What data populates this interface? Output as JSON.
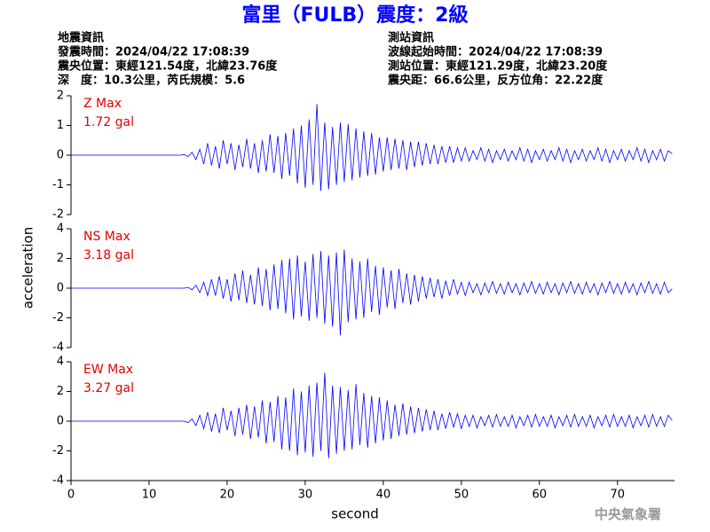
{
  "header": {
    "title": "富里（FULB）震度：2級",
    "left_info": [
      "地震資訊",
      "發震時間：2024/04/22 17:08:39",
      "震央位置：東經121.54度，北緯23.76度",
      "深　度：10.3公里，芮氏規模：5.6"
    ],
    "right_info": [
      "測站資訊",
      "波線起始時間：2024/04/22 17:08:39",
      "測站位置：東經121.29度，北緯23.20度",
      "震央距：66.6公里，反方位角：22.22度"
    ]
  },
  "y_label": "acceleration",
  "watermark": "中央氣象署",
  "chart_data": [
    {
      "type": "line",
      "color": "#0000ff",
      "annotations": [
        "Z Max",
        "1.72 gal"
      ],
      "xlim": [
        0,
        77.3
      ],
      "ylim": [
        -2,
        2
      ],
      "yticks": [
        -2,
        -1,
        0,
        1,
        2
      ],
      "x": [
        0,
        14,
        14.5,
        15,
        15.5,
        16,
        16.5,
        17,
        17.5,
        18,
        18.5,
        19,
        19.5,
        20,
        20.5,
        21,
        21.5,
        22,
        22.5,
        23,
        23.5,
        24,
        24.5,
        25,
        25.5,
        26,
        26.5,
        27,
        27.5,
        28,
        28.5,
        29,
        29.5,
        30,
        30.5,
        31,
        31.5,
        32,
        32.5,
        33,
        33.5,
        34,
        34.5,
        35,
        35.5,
        36,
        36.5,
        37,
        37.5,
        38,
        38.5,
        39,
        39.5,
        40,
        40.5,
        41,
        41.5,
        42,
        42.5,
        43,
        43.5,
        44,
        44.5,
        45,
        45.5,
        46,
        46.5,
        47,
        47.5,
        48,
        48.5,
        49,
        49.5,
        50,
        50.5,
        51,
        51.5,
        52,
        52.5,
        53,
        53.5,
        54,
        54.5,
        55,
        55.5,
        56,
        56.5,
        57,
        57.5,
        58,
        58.5,
        59,
        59.5,
        60,
        60.5,
        61,
        61.5,
        62,
        62.5,
        63,
        63.5,
        64,
        64.5,
        65,
        65.5,
        66,
        66.5,
        67,
        67.5,
        68,
        68.5,
        69,
        69.5,
        70,
        70.5,
        71,
        71.5,
        72,
        72.5,
        73,
        73.5,
        74,
        74.5,
        75,
        75.5,
        76,
        76.5,
        77
      ],
      "values": [
        0,
        0,
        0.02,
        -0.05,
        0.1,
        -0.15,
        0.2,
        -0.3,
        0.4,
        -0.35,
        0.3,
        -0.45,
        0.5,
        -0.3,
        0.4,
        -0.5,
        0.35,
        -0.4,
        0.55,
        -0.45,
        0.4,
        -0.6,
        0.5,
        -0.55,
        0.7,
        -0.6,
        0.65,
        -0.8,
        0.75,
        -0.7,
        0.9,
        -0.95,
        1.0,
        -1.1,
        1.2,
        -1.0,
        1.72,
        -1.2,
        1.1,
        -1.15,
        0.95,
        -1.0,
        1.1,
        -0.9,
        1.05,
        -0.85,
        0.9,
        -0.75,
        0.8,
        -0.7,
        0.75,
        -0.65,
        0.6,
        -0.55,
        0.6,
        -0.5,
        0.55,
        -0.45,
        0.5,
        -0.5,
        0.45,
        -0.4,
        0.45,
        -0.35,
        0.4,
        -0.3,
        0.35,
        -0.3,
        0.3,
        -0.25,
        0.3,
        -0.25,
        0.25,
        -0.2,
        0.25,
        -0.2,
        0.15,
        -0.15,
        0.25,
        -0.2,
        0.2,
        -0.25,
        0.15,
        -0.15,
        0.2,
        -0.2,
        0.15,
        -0.15,
        0.25,
        -0.2,
        0.2,
        -0.25,
        0.15,
        -0.15,
        0.2,
        -0.2,
        0.15,
        -0.15,
        0.25,
        -0.2,
        0.2,
        -0.25,
        0.15,
        -0.15,
        0.2,
        -0.2,
        0.15,
        -0.15,
        0.25,
        -0.2,
        0.2,
        -0.25,
        0.15,
        -0.15,
        0.2,
        -0.2,
        0.15,
        -0.15,
        0.25,
        -0.2,
        0.2,
        -0.25,
        0.15,
        -0.15,
        0.2,
        -0.2,
        0.15,
        0.05
      ]
    },
    {
      "type": "line",
      "color": "#0000ff",
      "annotations": [
        "NS Max",
        "3.18 gal"
      ],
      "xlim": [
        0,
        77.3
      ],
      "ylim": [
        -4,
        4
      ],
      "yticks": [
        -4,
        -2,
        0,
        2,
        4
      ],
      "x": [
        0,
        14,
        14.5,
        15,
        15.5,
        16,
        16.5,
        17,
        17.5,
        18,
        18.5,
        19,
        19.5,
        20,
        20.5,
        21,
        21.5,
        22,
        22.5,
        23,
        23.5,
        24,
        24.5,
        25,
        25.5,
        26,
        26.5,
        27,
        27.5,
        28,
        28.5,
        29,
        29.5,
        30,
        30.5,
        31,
        31.5,
        32,
        32.5,
        33,
        33.5,
        34,
        34.5,
        35,
        35.5,
        36,
        36.5,
        37,
        37.5,
        38,
        38.5,
        39,
        39.5,
        40,
        40.5,
        41,
        41.5,
        42,
        42.5,
        43,
        43.5,
        44,
        44.5,
        45,
        45.5,
        46,
        46.5,
        47,
        47.5,
        48,
        48.5,
        49,
        49.5,
        50,
        50.5,
        51,
        51.5,
        52,
        52.5,
        53,
        53.5,
        54,
        54.5,
        55,
        55.5,
        56,
        56.5,
        57,
        57.5,
        58,
        58.5,
        59,
        59.5,
        60,
        60.5,
        61,
        61.5,
        62,
        62.5,
        63,
        63.5,
        64,
        64.5,
        65,
        65.5,
        66,
        66.5,
        67,
        67.5,
        68,
        68.5,
        69,
        69.5,
        70,
        70.5,
        71,
        71.5,
        72,
        72.5,
        73,
        73.5,
        74,
        74.5,
        75,
        75.5,
        76,
        76.5,
        77
      ],
      "values": [
        0,
        0,
        0,
        0.05,
        -0.1,
        0.2,
        -0.3,
        0.4,
        -0.5,
        0.6,
        -0.5,
        0.8,
        -0.7,
        0.6,
        -0.9,
        1.0,
        -0.8,
        1.2,
        -1.0,
        0.9,
        -1.1,
        1.4,
        -1.2,
        1.3,
        -1.5,
        1.6,
        -1.4,
        1.9,
        -1.7,
        2.0,
        -2.1,
        2.2,
        -1.9,
        1.8,
        -2.2,
        2.3,
        -2.0,
        2.5,
        -2.4,
        2.2,
        -2.6,
        2.4,
        -3.18,
        2.6,
        -2.3,
        2.0,
        -2.1,
        1.8,
        -2.0,
        2.0,
        -1.6,
        1.5,
        -1.8,
        1.4,
        -1.3,
        1.2,
        -1.4,
        1.3,
        -1.0,
        1.0,
        -1.1,
        0.9,
        -0.9,
        0.8,
        -0.7,
        0.7,
        -0.6,
        0.6,
        -0.7,
        0.5,
        -0.5,
        0.6,
        -0.4,
        0.4,
        -0.5,
        0.4,
        -0.3,
        0.3,
        -0.45,
        0.35,
        -0.3,
        0.45,
        -0.35,
        0.3,
        -0.4,
        0.4,
        -0.3,
        0.3,
        -0.45,
        0.35,
        -0.3,
        0.45,
        -0.35,
        0.3,
        -0.4,
        0.4,
        -0.3,
        0.3,
        -0.45,
        0.35,
        -0.3,
        0.45,
        -0.35,
        0.3,
        -0.4,
        0.4,
        -0.3,
        0.3,
        -0.45,
        0.35,
        -0.3,
        0.45,
        -0.35,
        0.3,
        -0.4,
        0.4,
        -0.3,
        0.3,
        -0.45,
        0.35,
        -0.3,
        0.45,
        -0.35,
        0.3,
        -0.4,
        0.4,
        -0.3,
        -0.05
      ]
    },
    {
      "type": "line",
      "color": "#0000ff",
      "annotations": [
        "EW Max",
        "3.27 gal"
      ],
      "xlim": [
        0,
        77.3
      ],
      "ylim": [
        -4,
        4
      ],
      "yticks": [
        -4,
        -2,
        0,
        2,
        4
      ],
      "xticks": [
        0,
        10,
        20,
        30,
        40,
        50,
        60,
        70
      ],
      "x_label": "second",
      "x": [
        0,
        14,
        14.5,
        15,
        15.5,
        16,
        16.5,
        17,
        17.5,
        18,
        18.5,
        19,
        19.5,
        20,
        20.5,
        21,
        21.5,
        22,
        22.5,
        23,
        23.5,
        24,
        24.5,
        25,
        25.5,
        26,
        26.5,
        27,
        27.5,
        28,
        28.5,
        29,
        29.5,
        30,
        30.5,
        31,
        31.5,
        32,
        32.5,
        33,
        33.5,
        34,
        34.5,
        35,
        35.5,
        36,
        36.5,
        37,
        37.5,
        38,
        38.5,
        39,
        39.5,
        40,
        40.5,
        41,
        41.5,
        42,
        42.5,
        43,
        43.5,
        44,
        44.5,
        45,
        45.5,
        46,
        46.5,
        47,
        47.5,
        48,
        48.5,
        49,
        49.5,
        50,
        50.5,
        51,
        51.5,
        52,
        52.5,
        53,
        53.5,
        54,
        54.5,
        55,
        55.5,
        56,
        56.5,
        57,
        57.5,
        58,
        58.5,
        59,
        59.5,
        60,
        60.5,
        61,
        61.5,
        62,
        62.5,
        63,
        63.5,
        64,
        64.5,
        65,
        65.5,
        66,
        66.5,
        67,
        67.5,
        68,
        68.5,
        69,
        69.5,
        70,
        70.5,
        71,
        71.5,
        72,
        72.5,
        73,
        73.5,
        74,
        74.5,
        75,
        75.5,
        76,
        76.5,
        77
      ],
      "values": [
        0,
        0,
        0,
        -0.1,
        0.15,
        -0.3,
        0.4,
        -0.5,
        0.6,
        -0.7,
        0.5,
        -0.8,
        0.9,
        -0.6,
        0.7,
        -1.0,
        0.9,
        -0.9,
        1.1,
        -1.2,
        1.0,
        -1.1,
        1.4,
        -1.5,
        1.3,
        -1.4,
        1.7,
        -1.9,
        1.6,
        -2.0,
        2.2,
        -2.3,
        2.0,
        -2.1,
        2.4,
        -2.4,
        2.6,
        -2.0,
        3.27,
        -2.5,
        2.4,
        -2.2,
        2.3,
        -2.0,
        2.1,
        -1.9,
        2.5,
        -1.6,
        1.9,
        -1.8,
        1.7,
        -1.5,
        1.6,
        -1.3,
        1.4,
        -1.2,
        1.1,
        -1.0,
        1.2,
        -0.9,
        1.0,
        -0.8,
        0.9,
        -0.7,
        0.8,
        -0.6,
        0.7,
        -0.6,
        0.5,
        -0.5,
        0.6,
        -0.4,
        0.5,
        -0.5,
        0.4,
        -0.35,
        0.4,
        -0.45,
        0.3,
        -0.3,
        0.4,
        -0.4,
        0.45,
        -0.35,
        0.3,
        -0.35,
        0.4,
        -0.45,
        0.3,
        -0.3,
        0.4,
        -0.4,
        0.45,
        -0.35,
        0.3,
        -0.35,
        0.4,
        -0.45,
        0.3,
        -0.3,
        0.4,
        -0.4,
        0.45,
        -0.35,
        0.3,
        -0.35,
        0.4,
        -0.45,
        0.3,
        -0.3,
        0.4,
        -0.4,
        0.45,
        -0.35,
        0.3,
        -0.35,
        0.4,
        -0.45,
        0.3,
        -0.3,
        0.4,
        -0.4,
        0.45,
        -0.35,
        0.3,
        -0.35,
        0.4,
        0.05
      ]
    }
  ]
}
